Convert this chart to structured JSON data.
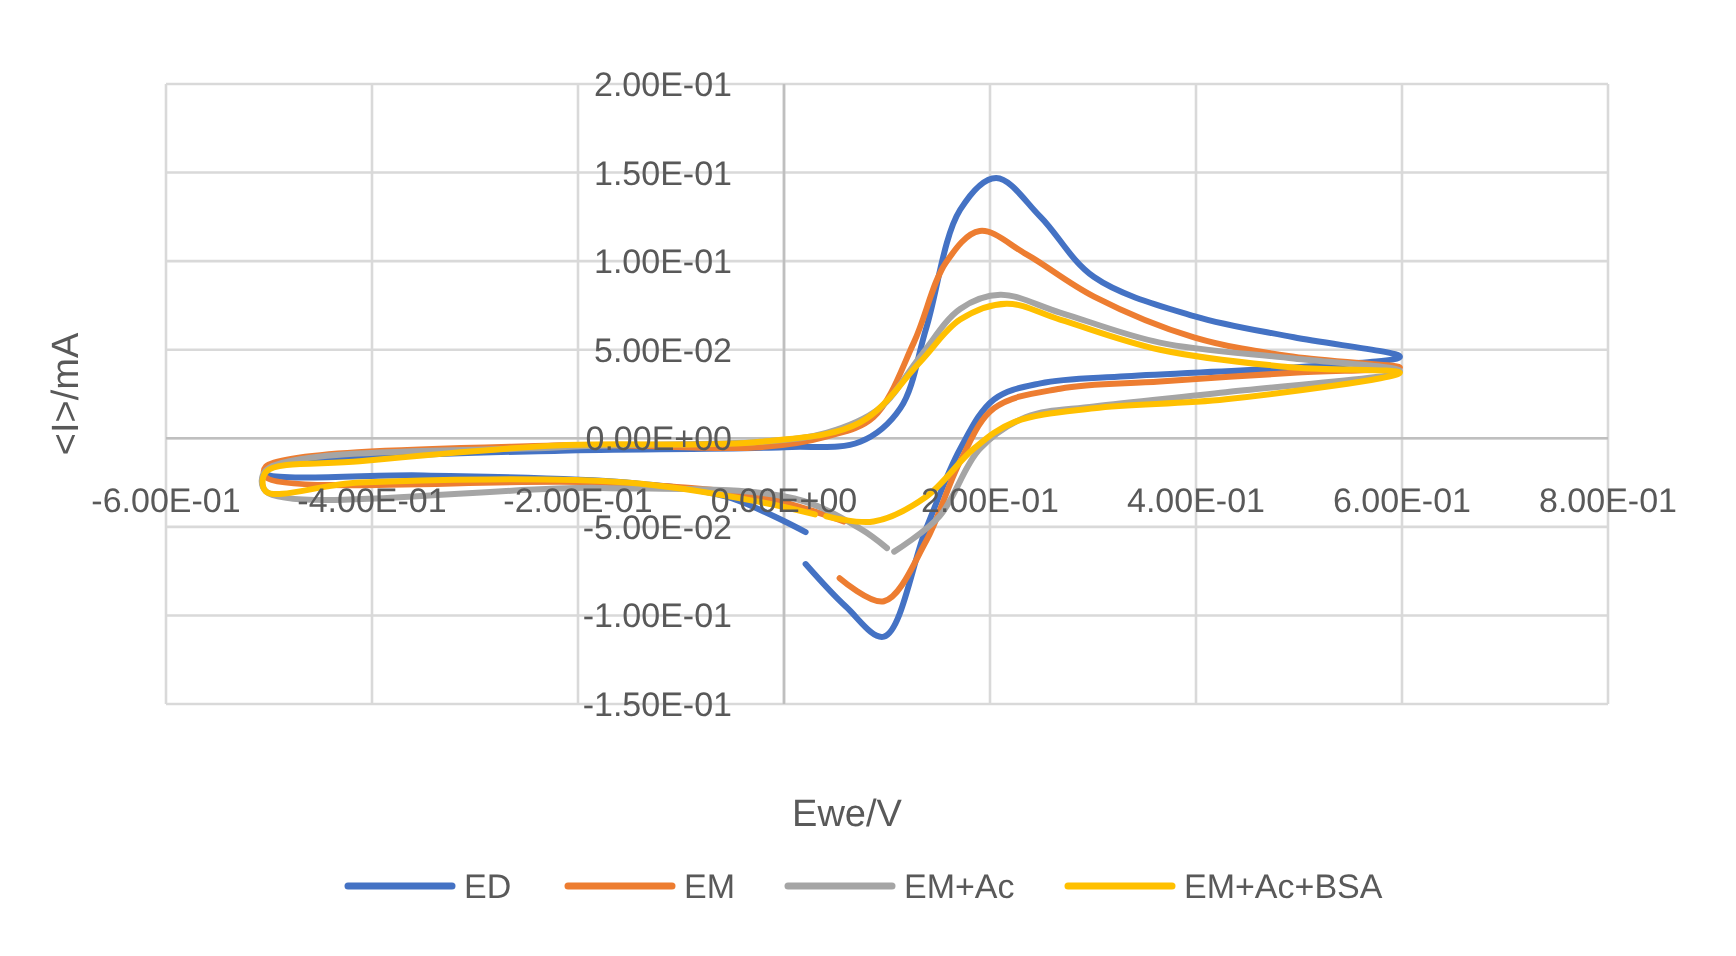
{
  "chart_data": {
    "type": "line",
    "xlabel": "Ewe/V",
    "ylabel": "<I>/mA",
    "xlim": [
      -0.6,
      0.8
    ],
    "ylim": [
      -0.15,
      0.2
    ],
    "xticks": [
      {
        "value": -0.6,
        "label": "-6.00E-01"
      },
      {
        "value": -0.4,
        "label": "-4.00E-01"
      },
      {
        "value": -0.2,
        "label": "-2.00E-01"
      },
      {
        "value": 0,
        "label": "0.00E+00"
      },
      {
        "value": 0.2,
        "label": "2.00E-01"
      },
      {
        "value": 0.4,
        "label": "4.00E-01"
      },
      {
        "value": 0.6,
        "label": "6.00E-01"
      },
      {
        "value": 0.8,
        "label": "8.00E-01"
      }
    ],
    "yticks": [
      {
        "value": -0.15,
        "label": "-1.50E-01"
      },
      {
        "value": -0.1,
        "label": "-1.00E-01"
      },
      {
        "value": -0.05,
        "label": "-5.00E-02"
      },
      {
        "value": 0,
        "label": "0.00E+00"
      },
      {
        "value": 0.05,
        "label": "5.00E-02"
      },
      {
        "value": 0.1,
        "label": "1.00E-01"
      },
      {
        "value": 0.15,
        "label": "1.50E-01"
      },
      {
        "value": 0.2,
        "label": "2.00E-01"
      }
    ],
    "grid": true,
    "legend": "bottom",
    "marker": "none",
    "line_style": "solid",
    "series": [
      {
        "name": "ED",
        "color": "#4472c4",
        "x": [
          0.021,
          0.06,
          0.097,
          0.138,
          0.171,
          0.204,
          0.249,
          0.332,
          0.495,
          0.598,
          0.495,
          0.398,
          0.301,
          0.249,
          0.206,
          0.171,
          0.138,
          0.113,
          0.074,
          0,
          -0.217,
          -0.373,
          -0.503,
          -0.503,
          -0.35,
          -0.153,
          -0.056,
          0.021
        ],
        "values": [
          -0.071,
          -0.095,
          -0.112,
          -0.051,
          -0.006,
          0.022,
          0.031,
          0.035,
          0.04,
          0.046,
          0.057,
          0.069,
          0.091,
          0.125,
          0.147,
          0.129,
          0.062,
          0.017,
          -0.002,
          -0.005,
          -0.007,
          -0.01,
          -0.017,
          -0.02,
          -0.021,
          -0.025,
          -0.033,
          -0.053
        ]
      },
      {
        "name": "EM",
        "color": "#ed7d31",
        "x": [
          0.054,
          0.097,
          0.138,
          0.171,
          0.204,
          0.268,
          0.365,
          0.495,
          0.598,
          0.495,
          0.398,
          0.301,
          0.235,
          0.19,
          0.157,
          0.126,
          0.087,
          0.041,
          -0.023,
          -0.217,
          -0.503,
          -0.503,
          -0.179,
          -0.023,
          0.058
        ],
        "values": [
          -0.079,
          -0.092,
          -0.058,
          -0.013,
          0.017,
          0.028,
          0.032,
          0.037,
          0.04,
          0.046,
          0.057,
          0.08,
          0.104,
          0.117,
          0.099,
          0.054,
          0.012,
          0.001,
          -0.005,
          -0.004,
          -0.016,
          -0.022,
          -0.025,
          -0.033,
          -0.047
        ]
      },
      {
        "name": "EM+Ac",
        "color": "#a5a5a5",
        "x": [
          0.107,
          0.151,
          0.19,
          0.235,
          0.301,
          0.429,
          0.598,
          0.495,
          0.365,
          0.268,
          0.21,
          0.171,
          0.132,
          0.093,
          0.041,
          -0.023,
          -0.217,
          -0.503,
          -0.503,
          -0.179,
          0.01,
          0.074,
          0.1
        ],
        "values": [
          -0.064,
          -0.044,
          -0.006,
          0.012,
          0.018,
          0.026,
          0.038,
          0.045,
          0.054,
          0.071,
          0.081,
          0.073,
          0.046,
          0.017,
          0.003,
          -0.002,
          -0.005,
          -0.018,
          -0.03,
          -0.028,
          -0.034,
          -0.051,
          -0.062
        ]
      },
      {
        "name": "EM+Ac+BSA",
        "color": "#ffc000",
        "x": [
          0.041,
          0.087,
          0.138,
          0.184,
          0.223,
          0.301,
          0.429,
          0.598,
          0.495,
          0.365,
          0.268,
          0.216,
          0.171,
          0.132,
          0.074,
          -0.023,
          -0.217,
          -0.412,
          -0.503,
          -0.503,
          -0.412,
          -0.153,
          -0.023,
          0.03
        ],
        "values": [
          -0.044,
          -0.047,
          -0.033,
          -0.006,
          0.009,
          0.017,
          0.022,
          0.037,
          0.04,
          0.05,
          0.067,
          0.076,
          0.067,
          0.043,
          0.009,
          -0.002,
          -0.004,
          -0.013,
          -0.019,
          -0.03,
          -0.025,
          -0.025,
          -0.036,
          -0.043
        ]
      }
    ]
  }
}
